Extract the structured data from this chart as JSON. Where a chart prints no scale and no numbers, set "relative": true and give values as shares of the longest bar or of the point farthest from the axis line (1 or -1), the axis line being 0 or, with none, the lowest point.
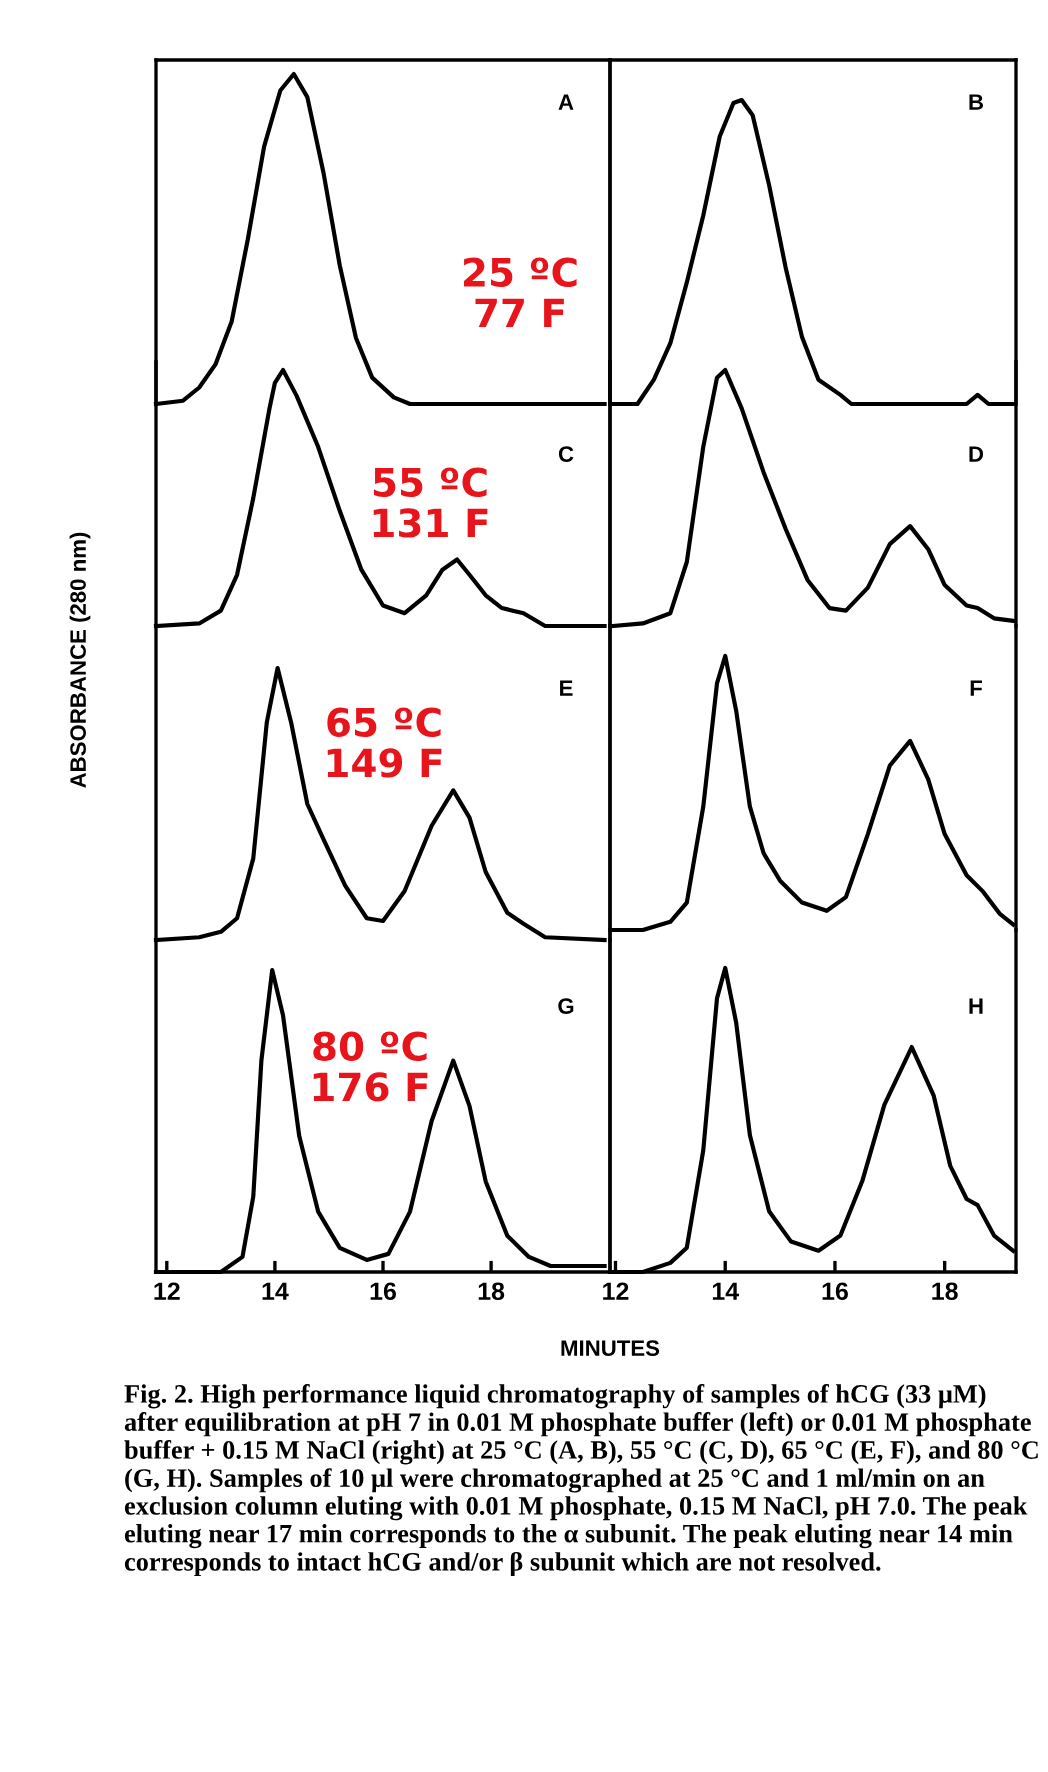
{
  "chart_data": [
    {
      "type": "line",
      "relative": true,
      "ylabel": "ABSORBANCE (280 nm)",
      "xlim": [
        11.8,
        20.2
      ],
      "tick_labels": false,
      "annotations": [
        "A",
        "25 ºC\n77 F"
      ],
      "series": [
        {
          "color": "#000000",
          "x": [
            11.8,
            12.3,
            12.6,
            12.9,
            13.2,
            13.5,
            13.8,
            14.1,
            14.35,
            14.6,
            14.9,
            15.2,
            15.5,
            15.8,
            16.2,
            16.5,
            18.0,
            20.1
          ],
          "values": [
            0,
            0.01,
            0.05,
            0.12,
            0.25,
            0.5,
            0.78,
            0.95,
            1.0,
            0.93,
            0.7,
            0.42,
            0.2,
            0.08,
            0.02,
            0,
            0,
            0
          ]
        }
      ]
    },
    {
      "type": "line",
      "relative": true,
      "xlim": [
        11.9,
        19.3
      ],
      "tick_labels": false,
      "annotations": [
        "B"
      ],
      "series": [
        {
          "color": "#000000",
          "x": [
            11.95,
            12.4,
            12.7,
            13.0,
            13.3,
            13.6,
            13.9,
            14.15,
            14.3,
            14.5,
            14.8,
            15.1,
            15.4,
            15.7,
            16.1,
            16.3,
            17.5,
            18.4,
            18.6,
            18.8,
            19.25
          ],
          "values": [
            0,
            0,
            0.08,
            0.2,
            0.4,
            0.62,
            0.88,
            0.99,
            1.0,
            0.95,
            0.72,
            0.45,
            0.22,
            0.08,
            0.03,
            0,
            0,
            0,
            0.03,
            0,
            0
          ]
        }
      ]
    },
    {
      "type": "line",
      "relative": true,
      "xlim": [
        11.8,
        20.2
      ],
      "tick_labels": false,
      "annotations": [
        "C",
        "55 ºC\n131 F"
      ],
      "series": [
        {
          "color": "#000000",
          "x": [
            11.8,
            12.6,
            13.0,
            13.3,
            13.6,
            13.9,
            14.0,
            14.15,
            14.4,
            14.8,
            15.2,
            15.6,
            16.0,
            16.4,
            16.8,
            17.1,
            17.37,
            17.6,
            17.9,
            18.2,
            18.6,
            19.0,
            20.1
          ],
          "values": [
            0,
            0.01,
            0.06,
            0.2,
            0.5,
            0.85,
            0.95,
            1.0,
            0.9,
            0.7,
            0.45,
            0.22,
            0.08,
            0.05,
            0.12,
            0.22,
            0.26,
            0.2,
            0.12,
            0.07,
            0.05,
            0,
            0
          ]
        }
      ]
    },
    {
      "type": "line",
      "relative": true,
      "xlim": [
        11.9,
        19.3
      ],
      "tick_labels": false,
      "annotations": [
        "D"
      ],
      "series": [
        {
          "color": "#000000",
          "x": [
            11.95,
            12.5,
            13.0,
            13.3,
            13.6,
            13.85,
            14.0,
            14.3,
            14.7,
            15.1,
            15.5,
            15.9,
            16.2,
            16.6,
            17.0,
            17.37,
            17.7,
            18.0,
            18.4,
            18.6,
            18.9,
            19.25
          ],
          "values": [
            0,
            0.01,
            0.05,
            0.25,
            0.7,
            0.97,
            1.0,
            0.85,
            0.6,
            0.38,
            0.18,
            0.07,
            0.06,
            0.15,
            0.32,
            0.39,
            0.3,
            0.16,
            0.08,
            0.07,
            0.03,
            0.02
          ]
        }
      ]
    },
    {
      "type": "line",
      "relative": true,
      "xlim": [
        11.8,
        20.2
      ],
      "tick_labels": false,
      "annotations": [
        "E",
        "65 ºC\n149 F"
      ],
      "series": [
        {
          "color": "#000000",
          "x": [
            11.8,
            12.6,
            13.0,
            13.3,
            13.6,
            13.85,
            14.05,
            14.3,
            14.6,
            14.9,
            15.3,
            15.7,
            16.0,
            16.4,
            16.9,
            17.3,
            17.6,
            17.9,
            18.3,
            18.6,
            19.0,
            20.1
          ],
          "values": [
            0,
            0.01,
            0.03,
            0.08,
            0.3,
            0.8,
            1.0,
            0.8,
            0.5,
            0.37,
            0.2,
            0.08,
            0.07,
            0.18,
            0.42,
            0.55,
            0.45,
            0.25,
            0.1,
            0.06,
            0.01,
            0
          ]
        }
      ]
    },
    {
      "type": "line",
      "relative": true,
      "xlim": [
        11.9,
        19.3
      ],
      "tick_labels": false,
      "annotations": [
        "F"
      ],
      "series": [
        {
          "color": "#000000",
          "x": [
            11.95,
            12.5,
            13.0,
            13.3,
            13.6,
            13.85,
            14.0,
            14.2,
            14.45,
            14.7,
            15.0,
            15.4,
            15.85,
            16.2,
            16.6,
            17.0,
            17.37,
            17.7,
            18.0,
            18.4,
            18.7,
            19.0,
            19.25
          ],
          "values": [
            0,
            0,
            0.03,
            0.1,
            0.45,
            0.9,
            1.0,
            0.8,
            0.45,
            0.28,
            0.18,
            0.1,
            0.07,
            0.12,
            0.35,
            0.6,
            0.69,
            0.55,
            0.35,
            0.2,
            0.14,
            0.06,
            0.02
          ]
        }
      ]
    },
    {
      "type": "line",
      "relative": true,
      "xlabel": "MINUTES",
      "xlim": [
        11.8,
        20.2
      ],
      "xticks": [
        12,
        14,
        16,
        18
      ],
      "tick_labels": "x",
      "annotations": [
        "G",
        "80 ºC\n176 F"
      ],
      "series": [
        {
          "color": "#000000",
          "x": [
            11.8,
            13.0,
            13.4,
            13.6,
            13.75,
            13.95,
            14.15,
            14.45,
            14.8,
            15.2,
            15.7,
            16.1,
            16.5,
            16.9,
            17.3,
            17.6,
            17.9,
            18.3,
            18.7,
            19.1,
            20.1
          ],
          "values": [
            0,
            0,
            0.05,
            0.25,
            0.7,
            1.0,
            0.85,
            0.45,
            0.2,
            0.08,
            0.04,
            0.06,
            0.2,
            0.5,
            0.7,
            0.55,
            0.3,
            0.12,
            0.05,
            0.02,
            0.02
          ]
        }
      ]
    },
    {
      "type": "line",
      "relative": true,
      "xlim": [
        11.9,
        19.3
      ],
      "xticks": [
        12,
        14,
        16,
        18
      ],
      "tick_labels": "x",
      "annotations": [
        "H",
        "Fig. 2. High performance liquid chromatography of samples of hCG (33 μM) after equilibration at pH 7 in 0.01 M phosphate buffer (left) or 0.01 M phosphate buffer + 0.15 M NaCl (right) at 25 °C (A, B), 55 °C (C, D), 65 °C (E, F), and 80 °C (G, H). Samples of 10 μl were chromatographed at 25 °C and 1 ml/min on an exclusion column eluting with 0.01 M phosphate, 0.15 M NaCl, pH 7.0. The peak eluting near 17 min corresponds to the α subunit. The peak eluting near 14 min corresponds to intact hCG and/or β subunit which are not resolved."
      ],
      "series": [
        {
          "color": "#000000",
          "x": [
            11.95,
            12.5,
            13.0,
            13.3,
            13.6,
            13.85,
            14.0,
            14.2,
            14.45,
            14.8,
            15.2,
            15.7,
            16.1,
            16.5,
            16.9,
            17.4,
            17.8,
            18.1,
            18.4,
            18.6,
            18.9,
            19.25
          ],
          "values": [
            0,
            0,
            0.03,
            0.08,
            0.4,
            0.9,
            1.0,
            0.82,
            0.45,
            0.2,
            0.1,
            0.07,
            0.12,
            0.3,
            0.55,
            0.74,
            0.58,
            0.35,
            0.24,
            0.22,
            0.12,
            0.07
          ]
        }
      ]
    }
  ]
}
